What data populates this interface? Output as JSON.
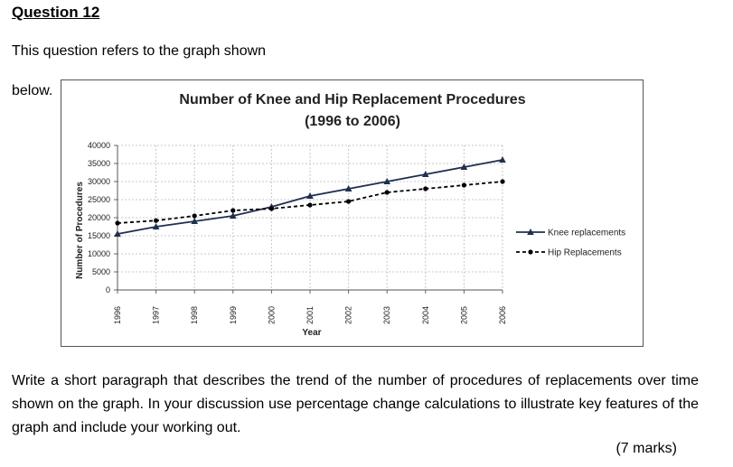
{
  "question": {
    "number": "Question 12",
    "intro": "This question refers to the graph shown",
    "below": "below.",
    "body": "Write a short paragraph that describes the trend of the number of procedures of replacements over time shown on the graph. In your discussion use percentage change calculations to illustrate key features of the graph and include your working out.",
    "marks": "(7 marks)"
  },
  "chart_data": {
    "type": "line",
    "title_line1": "Number of Knee and Hip Replacement Procedures",
    "title_line2": "(1996 to 2006)",
    "xlabel": "Year",
    "ylabel": "Number of Procedures",
    "categories": [
      "1996",
      "1997",
      "1998",
      "1999",
      "2000",
      "2001",
      "2002",
      "2003",
      "2004",
      "2005",
      "2006"
    ],
    "yticks": [
      "0",
      "5000",
      "10000",
      "15000",
      "20000",
      "25000",
      "30000",
      "35000",
      "40000"
    ],
    "ylim": [
      0,
      40000
    ],
    "grid": true,
    "legend_position": "right",
    "series": [
      {
        "name": "Knee replacements",
        "marker": "triangle",
        "line": "solid",
        "values": [
          15500,
          17500,
          19000,
          20500,
          23000,
          26000,
          28000,
          30000,
          32000,
          34000,
          36000
        ]
      },
      {
        "name": "Hip Replacements",
        "marker": "circle",
        "line": "dashed",
        "values": [
          18500,
          19200,
          20500,
          22000,
          22500,
          23500,
          24500,
          27000,
          28000,
          29000,
          30000
        ]
      }
    ],
    "colors": {
      "knee": "#1f2f4f",
      "hip": "#000000",
      "grid": "#c8c8c8"
    }
  }
}
